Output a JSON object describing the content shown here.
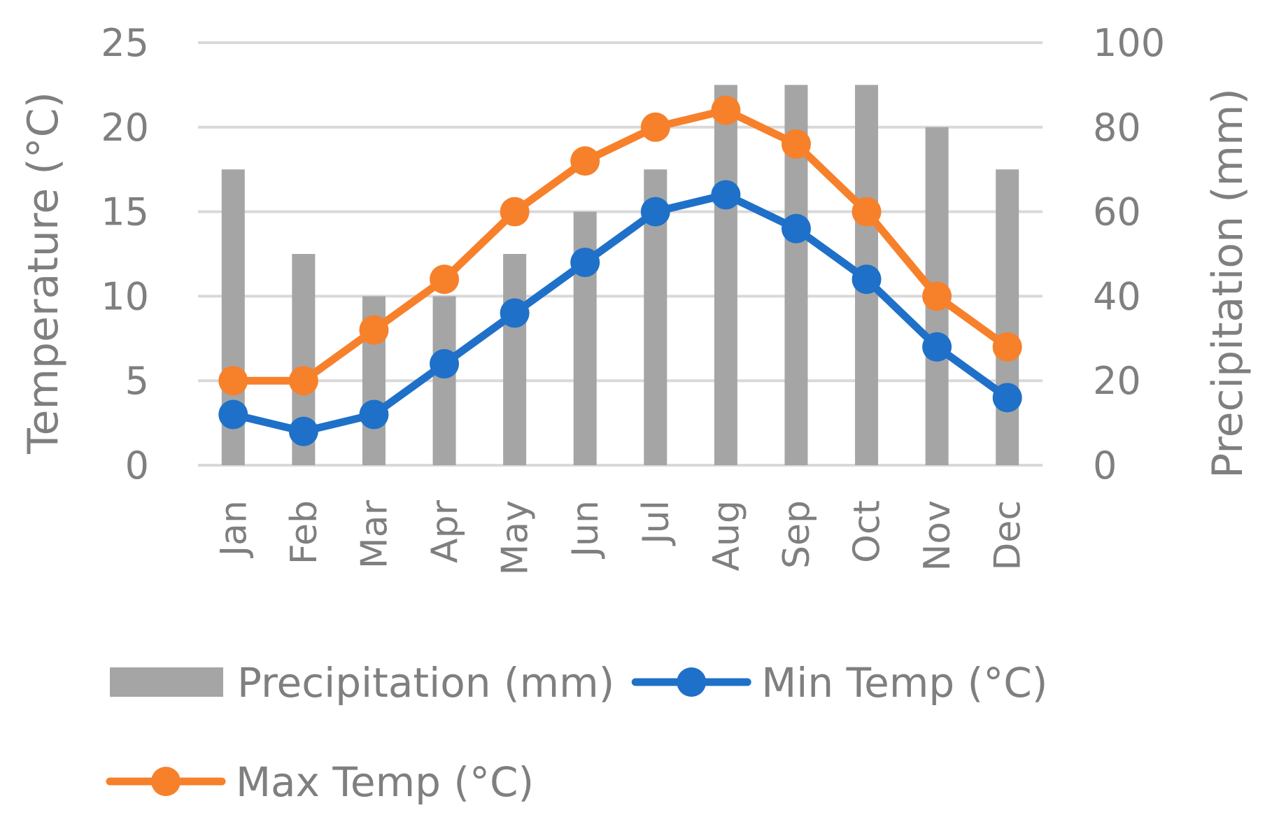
{
  "chart_data": {
    "type": "bar+line",
    "categories": [
      "Jan",
      "Feb",
      "Mar",
      "Apr",
      "May",
      "Jun",
      "Jul",
      "Aug",
      "Sep",
      "Oct",
      "Nov",
      "Dec"
    ],
    "y_left": {
      "label": "Temperature (°C)",
      "range": [
        0,
        25
      ],
      "ticks": [
        0,
        5,
        10,
        15,
        20,
        25
      ]
    },
    "y_right": {
      "label": "Precipitation (mm)",
      "range": [
        0,
        100
      ],
      "ticks": [
        0,
        20,
        40,
        60,
        80,
        100
      ]
    },
    "gridlines": true,
    "legend_position": "bottom",
    "series": [
      {
        "name": "Precipitation (mm)",
        "kind": "bar",
        "axis": "right",
        "color": "#a5a5a5",
        "values": [
          70,
          50,
          40,
          40,
          50,
          60,
          70,
          90,
          90,
          90,
          80,
          70
        ]
      },
      {
        "name": "Min Temp (°C)",
        "kind": "line",
        "axis": "left",
        "color": "#1f70c8",
        "values": [
          3,
          2,
          3,
          6,
          9,
          12,
          15,
          16,
          14,
          11,
          7,
          4
        ]
      },
      {
        "name": "Max Temp (°C)",
        "kind": "line",
        "axis": "left",
        "color": "#f7802b",
        "values": [
          5,
          5,
          8,
          11,
          15,
          18,
          20,
          21,
          19,
          15,
          10,
          7
        ]
      }
    ],
    "legend_rows": [
      [
        0,
        1
      ],
      [
        2
      ]
    ]
  }
}
